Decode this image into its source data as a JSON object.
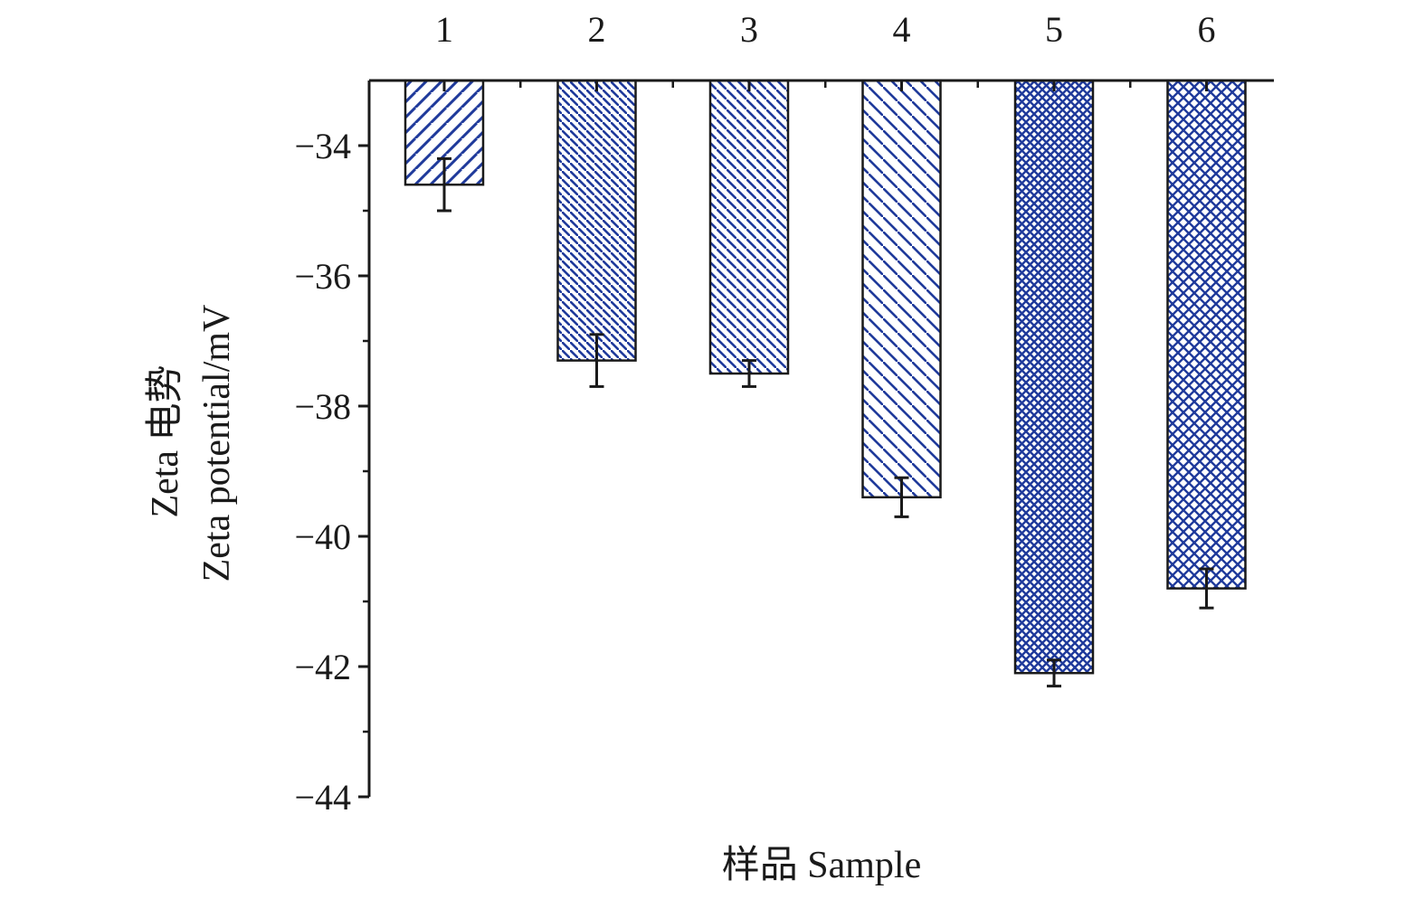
{
  "chart_data": {
    "type": "bar",
    "categories": [
      "1",
      "2",
      "3",
      "4",
      "5",
      "6"
    ],
    "values": [
      -34.6,
      -37.3,
      -37.5,
      -39.4,
      -42.1,
      -40.8
    ],
    "errors": [
      0.4,
      0.4,
      0.2,
      0.3,
      0.2,
      0.3
    ],
    "patterns": [
      "diag-up-sparse",
      "diag-down-dense",
      "diag-down-medium",
      "diag-down-sparse",
      "crosshatch-dense",
      "crosshatch-sparse"
    ],
    "xlabel": "样品 Sample",
    "ylabel_line1": "Zeta 电势",
    "ylabel_line2": "Zeta potential/mV",
    "ylim": [
      -44,
      -33
    ],
    "yticks": [
      -34,
      -36,
      -38,
      -40,
      -42,
      -44
    ],
    "ytick_labels": [
      "−34",
      "−36",
      "−38",
      "−40",
      "−42",
      "−44"
    ],
    "x_axis_position": "top",
    "grid": false,
    "colors": {
      "bar_stroke": "#1f3a9b",
      "axis": "#1a1a1a",
      "error_bar": "#1a1a1a"
    }
  }
}
